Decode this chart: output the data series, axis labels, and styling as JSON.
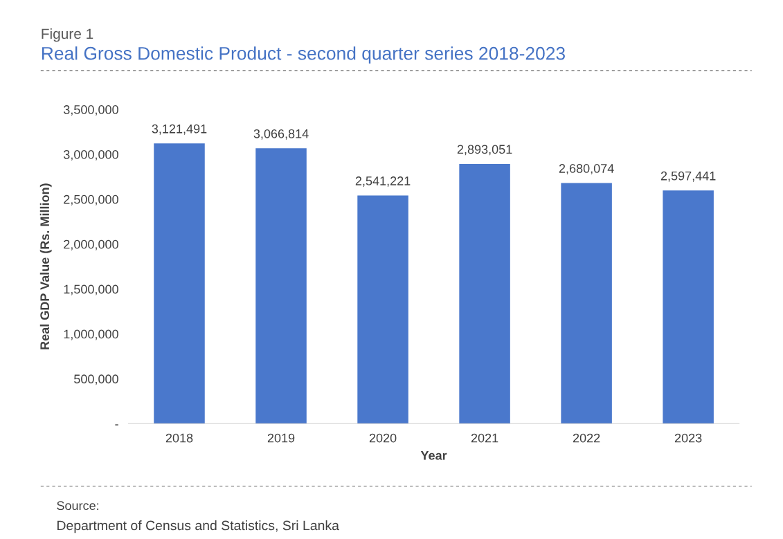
{
  "chart_data": {
    "type": "bar",
    "subtitle": "Figure 1",
    "title": "Real Gross Domestic Product - second quarter series 2018-2023",
    "xlabel": "Year",
    "ylabel": "Real GDP Value (Rs. Million)",
    "categories": [
      "2018",
      "2019",
      "2020",
      "2021",
      "2022",
      "2023"
    ],
    "values": [
      3121491,
      3066814,
      2541221,
      2893051,
      2680074,
      2597441
    ],
    "value_labels": [
      "3,121,491",
      "3,066,814",
      "2,541,221",
      "2,893,051",
      "2,680,074",
      "2,597,441"
    ],
    "color": "#4a78cc",
    "ylim": [
      0,
      3500000
    ],
    "yticks": [
      {
        "value": 0,
        "label": "-"
      },
      {
        "value": 500000,
        "label": "500,000"
      },
      {
        "value": 1000000,
        "label": "1,000,000"
      },
      {
        "value": 1500000,
        "label": "1,500,000"
      },
      {
        "value": 2000000,
        "label": "2,000,000"
      },
      {
        "value": 2500000,
        "label": "2,500,000"
      },
      {
        "value": 3000000,
        "label": "3,000,000"
      },
      {
        "value": 3500000,
        "label": "3,500,000"
      }
    ],
    "grid": false,
    "annotations": [
      "Source:",
      "Department of Census and Statistics, Sri Lanka"
    ]
  }
}
